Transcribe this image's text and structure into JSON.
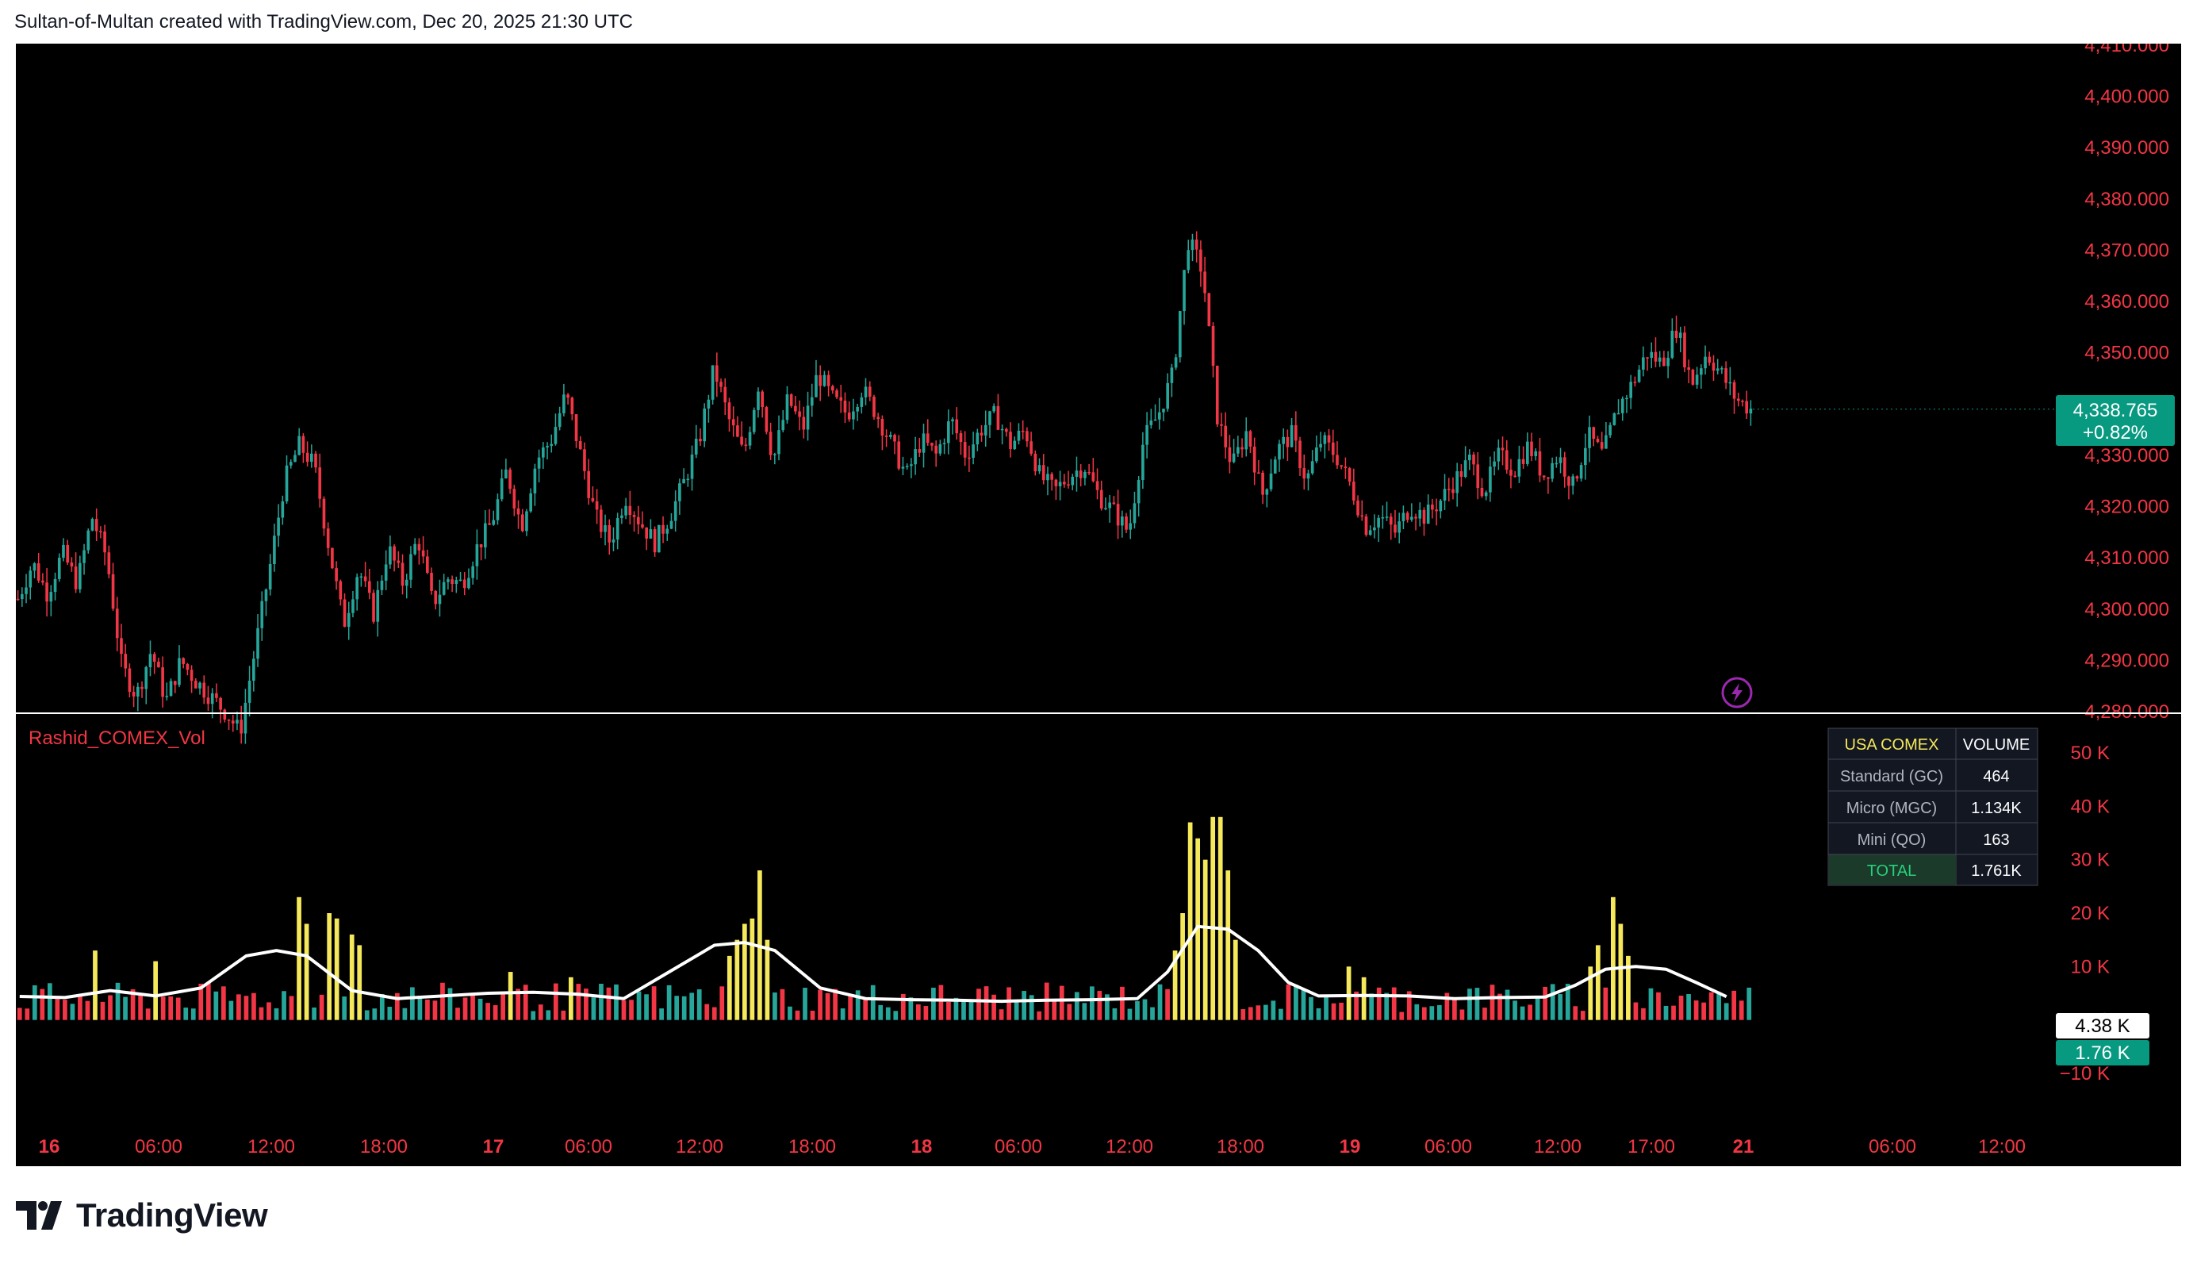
{
  "header": {
    "attribution": "Sultan-of-Multan created with TradingView.com, Dec 20, 2025 21:30 UTC"
  },
  "brand": {
    "name": "TradingView"
  },
  "colors": {
    "background": "#000000",
    "up": "#26a69a",
    "down": "#f23645",
    "axis_text": "#f23645",
    "spike": "#f5e85a",
    "ma_line": "#ffffff",
    "accent_purple": "#9c27b0"
  },
  "price_pane": {
    "y_ticks": [
      "4,280.000",
      "4,290.000",
      "4,300.000",
      "4,310.000",
      "4,320.000",
      "4,330.000",
      "4,340.000",
      "4,350.000",
      "4,360.000",
      "4,370.000",
      "4,380.000",
      "4,390.000",
      "4,400.000",
      "4,410.000"
    ],
    "last_price_label": "4,338.765",
    "last_change_label": "+0.82%",
    "alert_icon": "lightning-icon"
  },
  "volume_pane": {
    "indicator_name": "Rashid_COMEX_Vol",
    "y_ticks": [
      "50 K",
      "40 K",
      "30 K",
      "20 K",
      "10 K",
      "0",
      "−10 K"
    ],
    "ma_label": "4.38 K",
    "last_volume_label": "1.76 K",
    "table": {
      "header": [
        "USA COMEX",
        "VOLUME"
      ],
      "rows": [
        {
          "label": "Standard (GC)",
          "value": "464"
        },
        {
          "label": "Micro (MGC)",
          "value": "1.134K"
        },
        {
          "label": "Mini (QO)",
          "value": "163"
        },
        {
          "label": "TOTAL",
          "value": "1.761K"
        }
      ]
    }
  },
  "time_axis": {
    "labels": [
      {
        "text": "16",
        "day": true
      },
      {
        "text": "06:00",
        "day": false
      },
      {
        "text": "12:00",
        "day": false
      },
      {
        "text": "18:00",
        "day": false
      },
      {
        "text": "17",
        "day": true
      },
      {
        "text": "06:00",
        "day": false
      },
      {
        "text": "12:00",
        "day": false
      },
      {
        "text": "18:00",
        "day": false
      },
      {
        "text": "18",
        "day": true
      },
      {
        "text": "06:00",
        "day": false
      },
      {
        "text": "12:00",
        "day": false
      },
      {
        "text": "18:00",
        "day": false
      },
      {
        "text": "19",
        "day": true
      },
      {
        "text": "06:00",
        "day": false
      },
      {
        "text": "12:00",
        "day": false
      },
      {
        "text": "17:00",
        "day": false
      },
      {
        "text": "21",
        "day": true
      },
      {
        "text": "06:00",
        "day": false
      },
      {
        "text": "12:00",
        "day": false
      }
    ]
  },
  "chart_data": {
    "type": "candlestick",
    "price_ylim": [
      4280,
      4410
    ],
    "volume_ylim": [
      -10000,
      50000
    ],
    "price_path": [
      [
        0,
        4302
      ],
      [
        1,
        4309
      ],
      [
        2,
        4303
      ],
      [
        3,
        4311
      ],
      [
        4,
        4305
      ],
      [
        5,
        4318
      ],
      [
        6,
        4310
      ],
      [
        7,
        4289
      ],
      [
        8,
        4283
      ],
      [
        9,
        4292
      ],
      [
        10,
        4282
      ],
      [
        11,
        4290
      ],
      [
        12,
        4286
      ],
      [
        13,
        4283
      ],
      [
        14,
        4280
      ],
      [
        15,
        4276
      ],
      [
        16,
        4292
      ],
      [
        17,
        4308
      ],
      [
        18,
        4325
      ],
      [
        19,
        4332
      ],
      [
        20,
        4328
      ],
      [
        21,
        4312
      ],
      [
        22,
        4297
      ],
      [
        23,
        4308
      ],
      [
        24,
        4299
      ],
      [
        25,
        4312
      ],
      [
        26,
        4305
      ],
      [
        27,
        4314
      ],
      [
        28,
        4301
      ],
      [
        29,
        4306
      ],
      [
        30,
        4305
      ],
      [
        31,
        4312
      ],
      [
        32,
        4317
      ],
      [
        33,
        4327
      ],
      [
        34,
        4316
      ],
      [
        35,
        4329
      ],
      [
        36,
        4333
      ],
      [
        37,
        4342
      ],
      [
        38,
        4330
      ],
      [
        39,
        4318
      ],
      [
        40,
        4313
      ],
      [
        41,
        4322
      ],
      [
        42,
        4317
      ],
      [
        43,
        4313
      ],
      [
        44,
        4318
      ],
      [
        45,
        4325
      ],
      [
        46,
        4333
      ],
      [
        47,
        4347
      ],
      [
        48,
        4337
      ],
      [
        49,
        4330
      ],
      [
        50,
        4344
      ],
      [
        51,
        4329
      ],
      [
        52,
        4341
      ],
      [
        53,
        4335
      ],
      [
        54,
        4346
      ],
      [
        55,
        4341
      ],
      [
        56,
        4338
      ],
      [
        57,
        4343
      ],
      [
        58,
        4338
      ],
      [
        59,
        4332
      ],
      [
        60,
        4326
      ],
      [
        61,
        4333
      ],
      [
        62,
        4330
      ],
      [
        63,
        4337
      ],
      [
        64,
        4330
      ],
      [
        65,
        4335
      ],
      [
        66,
        4338
      ],
      [
        67,
        4332
      ],
      [
        68,
        4335
      ],
      [
        69,
        4326
      ],
      [
        70,
        4323
      ],
      [
        71,
        4326
      ],
      [
        72,
        4328
      ],
      [
        73,
        4322
      ],
      [
        74,
        4319
      ],
      [
        75,
        4315
      ],
      [
        76,
        4333
      ],
      [
        77,
        4338
      ],
      [
        78,
        4346
      ],
      [
        79,
        4372
      ],
      [
        80,
        4366
      ],
      [
        81,
        4337
      ],
      [
        82,
        4328
      ],
      [
        83,
        4335
      ],
      [
        84,
        4322
      ],
      [
        85,
        4331
      ],
      [
        86,
        4334
      ],
      [
        87,
        4325
      ],
      [
        88,
        4333
      ],
      [
        89,
        4330
      ],
      [
        90,
        4324
      ],
      [
        91,
        4316
      ],
      [
        92,
        4318
      ],
      [
        93,
        4315
      ],
      [
        94,
        4320
      ],
      [
        95,
        4318
      ],
      [
        96,
        4321
      ],
      [
        97,
        4325
      ],
      [
        98,
        4329
      ],
      [
        99,
        4323
      ],
      [
        100,
        4330
      ],
      [
        101,
        4327
      ],
      [
        102,
        4332
      ],
      [
        103,
        4326
      ],
      [
        104,
        4330
      ],
      [
        105,
        4324
      ],
      [
        106,
        4334
      ],
      [
        107,
        4330
      ],
      [
        108,
        4339
      ],
      [
        109,
        4344
      ],
      [
        110,
        4350
      ],
      [
        111,
        4348
      ],
      [
        112,
        4355
      ],
      [
        113,
        4344
      ],
      [
        114,
        4350
      ],
      [
        115,
        4346
      ],
      [
        116,
        4341
      ],
      [
        117,
        4339
      ]
    ],
    "volume_ma_path": [
      [
        0,
        4400
      ],
      [
        6,
        4200
      ],
      [
        12,
        5500
      ],
      [
        18,
        4500
      ],
      [
        24,
        6000
      ],
      [
        30,
        12000
      ],
      [
        34,
        13000
      ],
      [
        38,
        12000
      ],
      [
        44,
        5500
      ],
      [
        50,
        4000
      ],
      [
        56,
        4500
      ],
      [
        62,
        5000
      ],
      [
        68,
        5200
      ],
      [
        74,
        4800
      ],
      [
        80,
        4000
      ],
      [
        86,
        9000
      ],
      [
        92,
        14000
      ],
      [
        96,
        14500
      ],
      [
        100,
        13000
      ],
      [
        106,
        6000
      ],
      [
        112,
        4000
      ],
      [
        118,
        3800
      ],
      [
        124,
        3700
      ],
      [
        130,
        3500
      ],
      [
        136,
        3700
      ],
      [
        142,
        3800
      ],
      [
        148,
        4000
      ],
      [
        152,
        9000
      ],
      [
        156,
        17500
      ],
      [
        160,
        17000
      ],
      [
        164,
        13000
      ],
      [
        168,
        7000
      ],
      [
        172,
        4500
      ],
      [
        178,
        4600
      ],
      [
        184,
        4500
      ],
      [
        190,
        4000
      ],
      [
        196,
        4200
      ],
      [
        202,
        4300
      ],
      [
        206,
        6500
      ],
      [
        210,
        9500
      ],
      [
        214,
        10000
      ],
      [
        218,
        9500
      ],
      [
        222,
        7000
      ],
      [
        226,
        4380
      ]
    ],
    "volume_spikes": [
      [
        10,
        13000
      ],
      [
        18,
        11000
      ],
      [
        37,
        23000
      ],
      [
        38,
        18000
      ],
      [
        41,
        20000
      ],
      [
        42,
        19000
      ],
      [
        44,
        16000
      ],
      [
        45,
        14000
      ],
      [
        65,
        9000
      ],
      [
        73,
        8000
      ],
      [
        94,
        12000
      ],
      [
        95,
        15000
      ],
      [
        96,
        18000
      ],
      [
        97,
        19000
      ],
      [
        98,
        28000
      ],
      [
        99,
        15000
      ],
      [
        153,
        13000
      ],
      [
        154,
        20000
      ],
      [
        155,
        37000
      ],
      [
        156,
        34000
      ],
      [
        157,
        30000
      ],
      [
        158,
        38000
      ],
      [
        159,
        38000
      ],
      [
        160,
        28000
      ],
      [
        161,
        15000
      ],
      [
        176,
        10000
      ],
      [
        178,
        8000
      ],
      [
        208,
        10000
      ],
      [
        209,
        14000
      ],
      [
        211,
        23000
      ],
      [
        212,
        18000
      ],
      [
        213,
        12000
      ]
    ],
    "volume_last": 1761,
    "volume_ma_last": 4380
  }
}
